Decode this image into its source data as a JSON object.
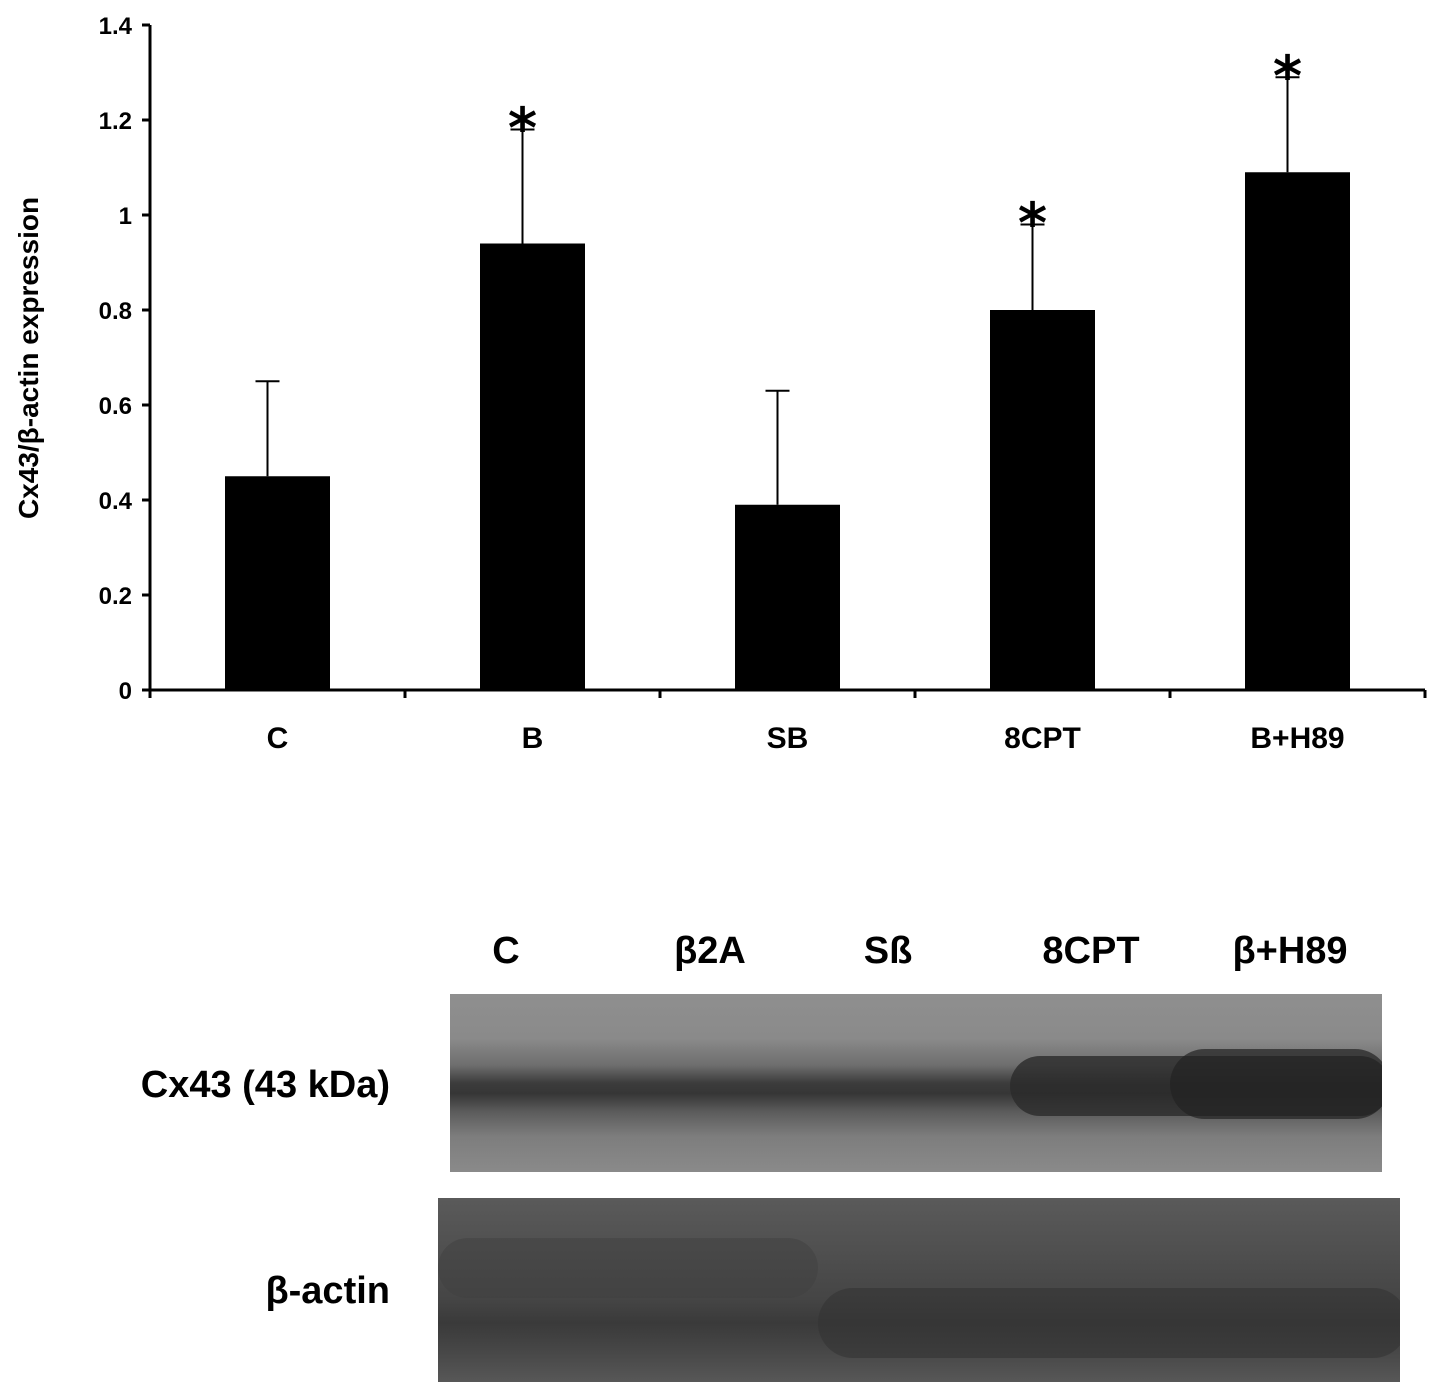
{
  "chart_data": {
    "type": "bar",
    "categories": [
      "C",
      "B",
      "SB",
      "8CPT",
      "B+H89"
    ],
    "values": [
      0.45,
      0.94,
      0.39,
      0.8,
      1.09
    ],
    "errors": [
      0.2,
      0.24,
      0.24,
      0.18,
      0.2
    ],
    "significance": [
      "",
      "*",
      "",
      "*",
      "*"
    ],
    "ylabel": "Cx43/β-actin expression",
    "xlabel": "",
    "ylim": [
      0,
      1.4
    ],
    "yticks": [
      "0",
      "0.2",
      "0.4",
      "0.6",
      "0.8",
      "1",
      "1.2",
      "1.4"
    ],
    "bar_color": "#000000",
    "grid": false
  },
  "blot": {
    "lanes": [
      "C",
      "β2A",
      "Sß",
      "8CPT",
      "β+H89"
    ],
    "rows": [
      {
        "label": "Cx43 (43 kDa)"
      },
      {
        "label": "β-actin"
      }
    ]
  }
}
